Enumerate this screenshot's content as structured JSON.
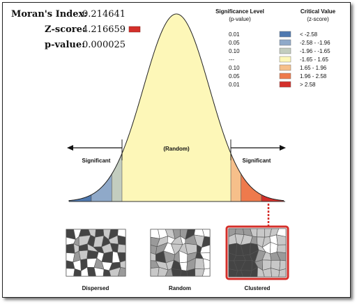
{
  "stats": {
    "morans_label": "Moran's Index:",
    "morans_value": "0.214641",
    "zscore_label": "Z-score:",
    "zscore_value": "4.216659",
    "pvalue_label": "p-value:",
    "pvalue_value": "0.000025"
  },
  "legend": {
    "sig_header_1": "Significance Level",
    "sig_header_2": "(p-value)",
    "crit_header_1": "Critical Value",
    "crit_header_2": "(z-score)",
    "rows": [
      {
        "p": "0.01",
        "z": "< -2.58",
        "color": "#4f79b0"
      },
      {
        "p": "0.05",
        "z": "-2.58 - -1.96",
        "color": "#8fa9c9"
      },
      {
        "p": "0.10",
        "z": "-1.96 - -1.65",
        "color": "#c3cdbf"
      },
      {
        "p": "---",
        "z": "-1.65 - 1.65",
        "color": "#fdf7b8"
      },
      {
        "p": "0.10",
        "z": "1.65 - 1.96",
        "color": "#f6bf8a"
      },
      {
        "p": "0.05",
        "z": "1.96 - 2.58",
        "color": "#ee7a4c"
      },
      {
        "p": "0.01",
        "z": "> 2.58",
        "color": "#d42f2a"
      }
    ]
  },
  "curve": {
    "significant_left": "Significant",
    "random": "(Random)",
    "significant_right": "Significant"
  },
  "maps": [
    {
      "label": "Dispersed"
    },
    {
      "label": "Random"
    },
    {
      "label": "Clustered"
    }
  ],
  "colors": {
    "highlight": "#d42f2a",
    "curve_fill": "#fdf7b8"
  }
}
